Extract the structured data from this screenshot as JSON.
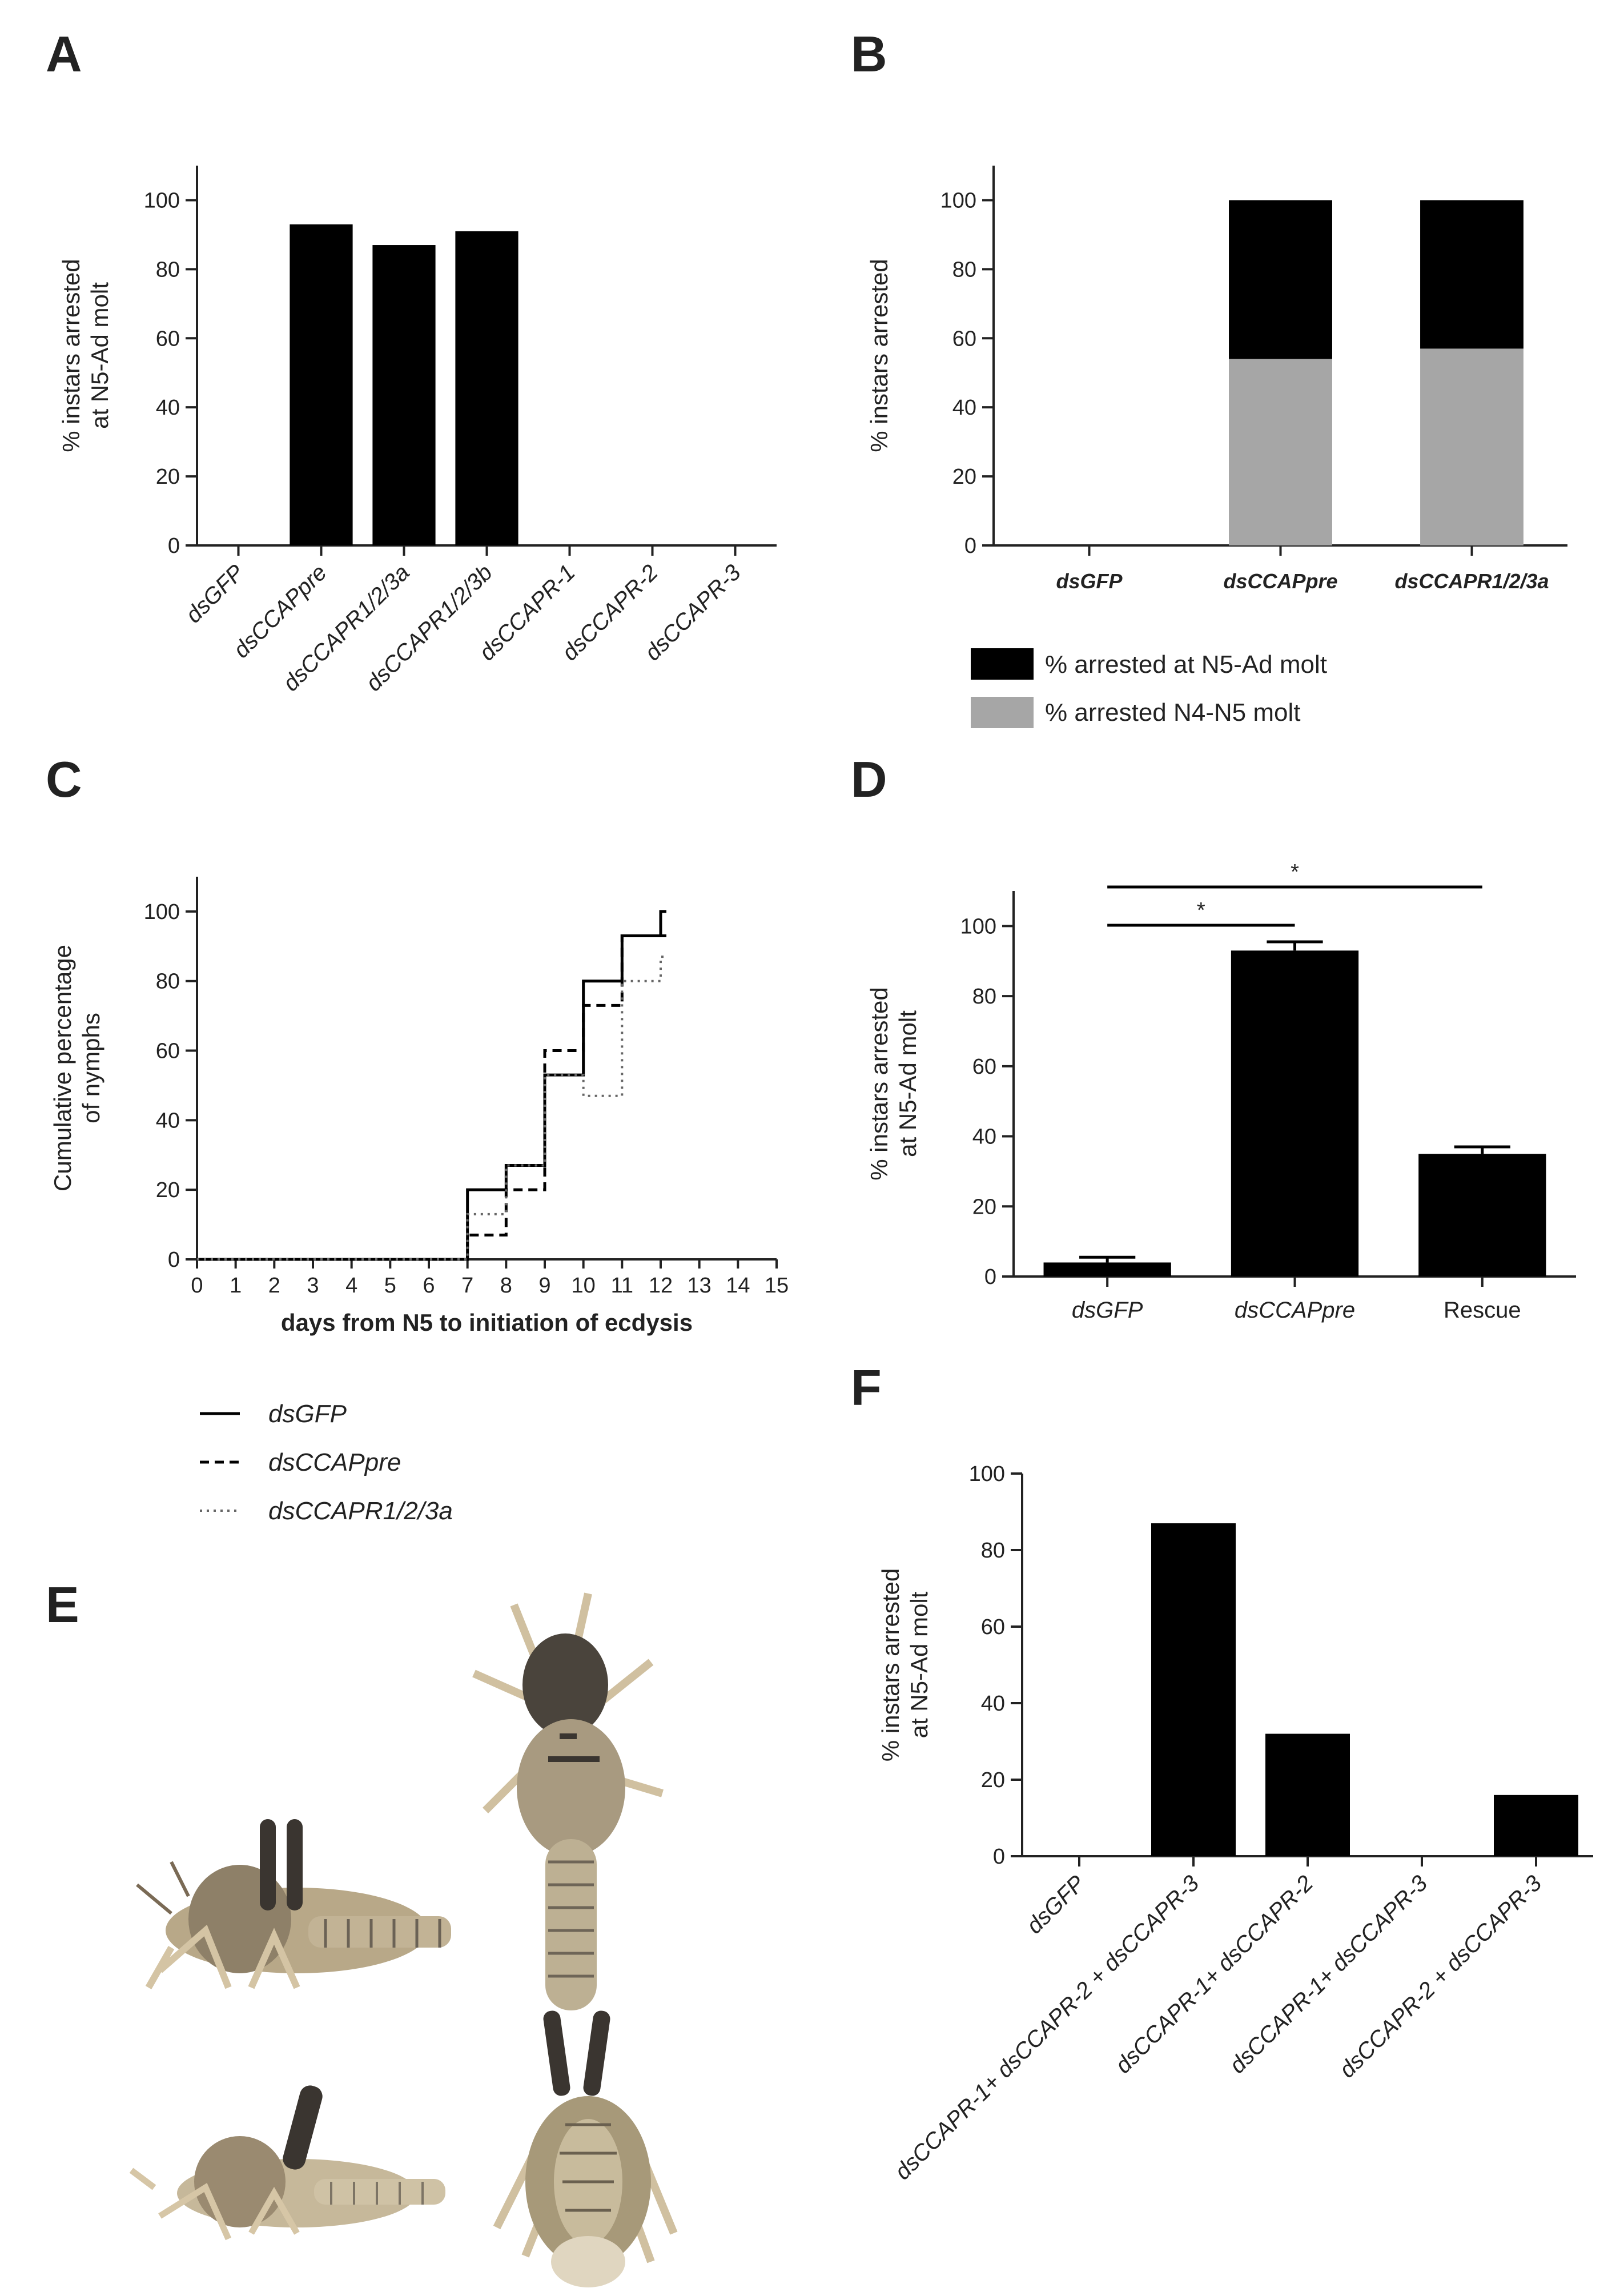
{
  "panels": {
    "A": "A",
    "B": "B",
    "C": "C",
    "D": "D",
    "E": "E",
    "F": "F"
  },
  "colors": {
    "black": "#000000",
    "gray": "#a6a6a6",
    "axis": "#222222",
    "insect_body": "#b8a888",
    "insect_dark": "#3a3530"
  },
  "chart_data": [
    {
      "panel": "A",
      "type": "bar",
      "ylabel": "% instars arrested at N5-Ad molt",
      "ylabel_lines": [
        "% instars arrested",
        "at N5-Ad molt"
      ],
      "ylim": [
        0,
        110
      ],
      "yticks": [
        0,
        20,
        40,
        60,
        80,
        100
      ],
      "categories": [
        "dsGFP",
        "dsCCAPpre",
        "dsCCAPR1/2/3a",
        "dsCCAPR1/2/3b",
        "dsCCAPR-1",
        "dsCCAPR-2",
        "dsCCAPR-3"
      ],
      "values": [
        0,
        93,
        87,
        91,
        0,
        0,
        0
      ],
      "grid": false
    },
    {
      "panel": "B",
      "type": "bar",
      "stacked": true,
      "ylabel": "% instars arrested",
      "ylim": [
        0,
        110
      ],
      "yticks": [
        0,
        20,
        40,
        60,
        80,
        100
      ],
      "categories": [
        "dsGFP",
        "dsCCAPpre",
        "dsCCAPR1/2/3a"
      ],
      "series": [
        {
          "name": "% arrested N4-N5 molt",
          "color": "#a6a6a6",
          "values": [
            0,
            54,
            57
          ]
        },
        {
          "name": "% arrested at N5-Ad molt",
          "color": "#000000",
          "values": [
            0,
            46,
            43
          ]
        }
      ],
      "legend": {
        "placement": "bottom",
        "items": [
          "% arrested at N5-Ad molt",
          "% arrested N4-N5 molt"
        ]
      },
      "grid": false
    },
    {
      "panel": "C",
      "type": "line",
      "step": true,
      "xlabel": "days from N5 to initiation of ecdysis",
      "ylabel": "Cumulative percentage of nymphs",
      "ylabel_lines": [
        "Cumulative percentage",
        "of nymphs"
      ],
      "xlim": [
        0,
        15
      ],
      "ylim": [
        0,
        110
      ],
      "xticks": [
        0,
        1,
        2,
        3,
        4,
        5,
        6,
        7,
        8,
        9,
        10,
        11,
        12,
        13,
        14,
        15
      ],
      "yticks": [
        0,
        20,
        40,
        60,
        80,
        100
      ],
      "series": [
        {
          "name": "dsGFP",
          "style": "solid",
          "x": [
            0,
            7,
            8,
            9,
            10,
            11,
            12
          ],
          "y": [
            0,
            20,
            27,
            53,
            80,
            93,
            100
          ]
        },
        {
          "name": "dsCCAPpre",
          "style": "dashed",
          "x": [
            0,
            7,
            8,
            9,
            10,
            11,
            12
          ],
          "y": [
            0,
            7,
            20,
            60,
            73,
            93,
            93
          ]
        },
        {
          "name": "dsCCAPR1/2/3a",
          "style": "dotted",
          "x": [
            0,
            7,
            8,
            9,
            10,
            11,
            12
          ],
          "y": [
            0,
            13,
            27,
            53,
            47,
            80,
            87
          ]
        }
      ],
      "legend": {
        "placement": "bottom-left",
        "items": [
          "dsGFP",
          "dsCCAPpre",
          "dsCCAPR1/2/3a"
        ]
      },
      "grid": false
    },
    {
      "panel": "D",
      "type": "bar",
      "ylabel": "% instars arrested at N5-Ad molt",
      "ylabel_lines": [
        "% instars arrested",
        "at N5-Ad molt"
      ],
      "ylim": [
        0,
        110
      ],
      "yticks": [
        0,
        20,
        40,
        60,
        80,
        100
      ],
      "categories": [
        "dsGFP",
        "dsCCAPpre",
        "Rescue"
      ],
      "values": [
        4,
        93,
        35
      ],
      "errors": [
        1.5,
        2.5,
        2
      ],
      "significance": [
        {
          "from": 0,
          "to": 1,
          "label": "*"
        },
        {
          "from": 0,
          "to": 2,
          "label": "*"
        }
      ],
      "grid": false
    },
    {
      "panel": "F",
      "type": "bar",
      "ylabel": "% instars arrested at N5-Ad molt",
      "ylabel_lines": [
        "% instars arrested",
        "at N5-Ad molt"
      ],
      "ylim": [
        0,
        100
      ],
      "yticks": [
        0,
        20,
        40,
        60,
        80,
        100
      ],
      "categories": [
        "dsGFP",
        "dsCCAPR-1+ dsCCAPR-2 + dsCCAPR-3",
        "dsCCAPR-1+ dsCCAPR-2",
        "dsCCAPR-1+ dsCCAPR-3",
        "dsCCAPR-2 + dsCCAPR-3"
      ],
      "values": [
        0,
        87,
        32,
        0,
        16
      ],
      "grid": false
    }
  ],
  "photo": {
    "panel": "E",
    "subject": "desert locust nymphs, arrested molt"
  }
}
